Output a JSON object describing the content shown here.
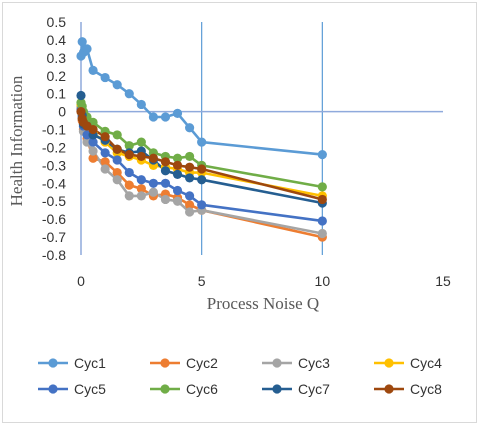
{
  "chart_data": {
    "type": "line",
    "title": "",
    "xlabel": "Process Noise Q",
    "ylabel": "Health Information",
    "xlim": [
      0,
      15
    ],
    "ylim": [
      -0.8,
      0.5
    ],
    "xticks": [
      0,
      5,
      10,
      15
    ],
    "yticks": [
      0.5,
      0.4,
      0.3,
      0.2,
      0.1,
      0,
      -0.1,
      -0.2,
      -0.3,
      -0.4,
      -0.5,
      -0.6,
      -0.7,
      -0.8
    ],
    "ytick_labels": [
      "0.5",
      "0.4",
      "0.3",
      "0.2",
      "0.1",
      "0",
      "-0.1",
      "-0.2",
      "-0.3",
      "-0.4",
      "-0.5",
      "-0.6",
      "-0.7",
      "-0.8"
    ],
    "gridlines_x": [
      5,
      10
    ],
    "legend_position": "bottom",
    "x": [
      0,
      0.05,
      0.1,
      0.25,
      0.5,
      1,
      1.5,
      2,
      2.5,
      3,
      3.5,
      4,
      4.5,
      5,
      10
    ],
    "series": [
      {
        "name": "Cyc1",
        "color": "#5b9bd5",
        "values": [
          0.31,
          0.39,
          0.33,
          0.35,
          0.23,
          0.19,
          0.15,
          0.1,
          0.04,
          -0.03,
          -0.03,
          -0.01,
          -0.09,
          -0.17,
          -0.24
        ]
      },
      {
        "name": "Cyc2",
        "color": "#ed7d31",
        "values": [
          0.02,
          -0.05,
          -0.1,
          -0.15,
          -0.26,
          -0.28,
          -0.34,
          -0.41,
          -0.43,
          -0.47,
          -0.46,
          -0.48,
          -0.52,
          -0.55,
          -0.7
        ]
      },
      {
        "name": "Cyc3",
        "color": "#a5a5a5",
        "values": [
          0.03,
          -0.04,
          -0.11,
          -0.17,
          -0.22,
          -0.32,
          -0.38,
          -0.47,
          -0.47,
          -0.45,
          -0.49,
          -0.5,
          -0.56,
          -0.55,
          -0.68
        ]
      },
      {
        "name": "Cyc4",
        "color": "#ffc000",
        "values": [
          0.04,
          -0.01,
          -0.05,
          -0.08,
          -0.12,
          -0.17,
          -0.23,
          -0.25,
          -0.27,
          -0.3,
          -0.31,
          -0.32,
          -0.34,
          -0.34,
          -0.47
        ]
      },
      {
        "name": "Cyc5",
        "color": "#4472c4",
        "values": [
          0.01,
          -0.03,
          -0.08,
          -0.13,
          -0.17,
          -0.23,
          -0.27,
          -0.34,
          -0.38,
          -0.4,
          -0.4,
          -0.44,
          -0.47,
          -0.52,
          -0.61
        ]
      },
      {
        "name": "Cyc6",
        "color": "#70ad47",
        "values": [
          0.05,
          0.03,
          0.0,
          -0.03,
          -0.06,
          -0.11,
          -0.13,
          -0.19,
          -0.17,
          -0.23,
          -0.25,
          -0.26,
          -0.25,
          -0.3,
          -0.42
        ]
      },
      {
        "name": "Cyc7",
        "color": "#255e91",
        "values": [
          0.09,
          -0.02,
          -0.07,
          -0.08,
          -0.13,
          -0.16,
          -0.21,
          -0.23,
          -0.22,
          -0.27,
          -0.33,
          -0.35,
          -0.37,
          -0.38,
          -0.51
        ]
      },
      {
        "name": "Cyc8",
        "color": "#9e480e",
        "values": [
          0.0,
          -0.04,
          -0.06,
          -0.08,
          -0.1,
          -0.14,
          -0.21,
          -0.24,
          -0.25,
          -0.26,
          -0.28,
          -0.3,
          -0.31,
          -0.32,
          -0.49
        ]
      }
    ]
  }
}
